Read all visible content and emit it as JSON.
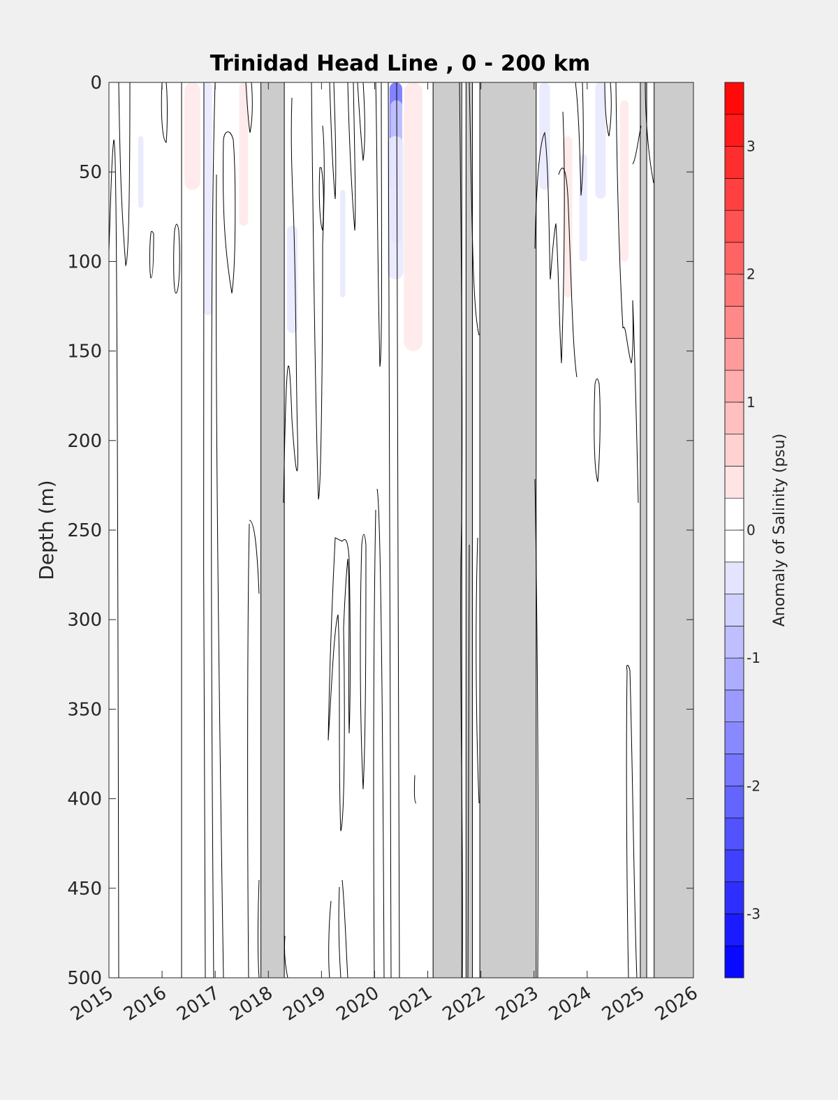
{
  "chart_data": {
    "type": "heatmap",
    "title": "Trinidad Head Line , 0 - 200 km",
    "ylabel": "Depth (m)",
    "xlabel": "",
    "xlim": [
      2015,
      2026
    ],
    "ylim": [
      0,
      500
    ],
    "y_reversed": true,
    "x_ticks": [
      2015,
      2016,
      2017,
      2018,
      2019,
      2020,
      2021,
      2022,
      2023,
      2024,
      2025,
      2026
    ],
    "y_ticks": [
      0,
      50,
      100,
      150,
      200,
      250,
      300,
      350,
      400,
      450,
      500
    ],
    "colorbar": {
      "label": "Anomaly of Salinity (psu)",
      "range": [
        -3.5,
        3.5
      ],
      "step": 0.25,
      "ticks": [
        -3,
        -2,
        -1,
        0,
        1,
        2,
        3
      ],
      "colors": {
        "negative": "#0000ff",
        "zero": "#ffffff",
        "positive": "#ff0000"
      }
    },
    "no_data_color": "#cccccc",
    "no_data_periods": [
      [
        2017.86,
        2018.3
      ],
      [
        2021.1,
        2021.64
      ],
      [
        2021.72,
        2021.84
      ],
      [
        2021.98,
        2023.04
      ],
      [
        2025.0,
        2025.12
      ],
      [
        2025.26,
        2026.0
      ]
    ],
    "anomaly_patches": [
      {
        "x": [
          2020.28,
          2020.52
        ],
        "depth": [
          0,
          60
        ],
        "anomaly": -1.9
      },
      {
        "x": [
          2020.3,
          2020.52
        ],
        "depth": [
          10,
          90
        ],
        "anomaly": -0.8
      },
      {
        "x": [
          2020.24,
          2020.54
        ],
        "depth": [
          30,
          110
        ],
        "anomaly": -0.3
      },
      {
        "x": [
          2020.55,
          2020.9
        ],
        "depth": [
          0,
          150
        ],
        "anomaly": 0.3
      },
      {
        "x": [
          2016.42,
          2016.72
        ],
        "depth": [
          0,
          60
        ],
        "anomaly": 0.3
      },
      {
        "x": [
          2016.78,
          2016.94
        ],
        "depth": [
          0,
          130
        ],
        "anomaly": -0.3
      },
      {
        "x": [
          2017.45,
          2017.62
        ],
        "depth": [
          0,
          80
        ],
        "anomaly": 0.3
      },
      {
        "x": [
          2015.55,
          2015.65
        ],
        "depth": [
          30,
          70
        ],
        "anomaly": -0.3
      },
      {
        "x": [
          2019.35,
          2019.45
        ],
        "depth": [
          60,
          120
        ],
        "anomaly": -0.3
      },
      {
        "x": [
          2018.35,
          2018.55
        ],
        "depth": [
          80,
          140
        ],
        "anomaly": -0.3
      },
      {
        "x": [
          2023.1,
          2023.3
        ],
        "depth": [
          0,
          60
        ],
        "anomaly": -0.3
      },
      {
        "x": [
          2023.55,
          2023.72
        ],
        "depth": [
          30,
          120
        ],
        "anomaly": 0.3
      },
      {
        "x": [
          2023.85,
          2024.0
        ],
        "depth": [
          40,
          100
        ],
        "anomaly": -0.3
      },
      {
        "x": [
          2024.15,
          2024.35
        ],
        "depth": [
          0,
          65
        ],
        "anomaly": -0.3
      },
      {
        "x": [
          2024.62,
          2024.78
        ],
        "depth": [
          10,
          100
        ],
        "anomaly": 0.3
      }
    ]
  }
}
